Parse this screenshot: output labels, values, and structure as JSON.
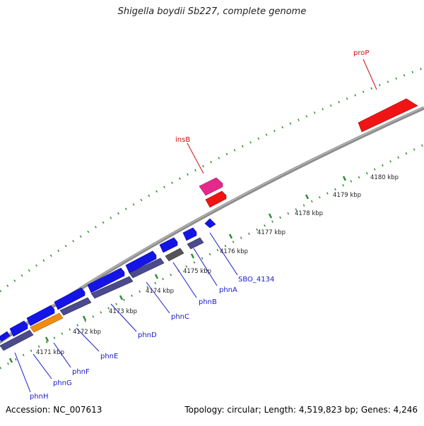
{
  "title": "Shigella boydii Sb227, complete genome",
  "footer": {
    "accession": "Accession: NC_007613",
    "summary": "Topology: circular; Length: 4,519,823 bp; Genes: 4,246"
  },
  "colors": {
    "backbone": "#8c8c8c",
    "tick": "#2e8b2e",
    "blue_gene": "#1414e6",
    "slate_gene": "#4a4a8c",
    "orange_gene": "#f08c14",
    "red_gene": "#f01414",
    "pink_gene": "#e6288c",
    "gray_gene": "#555555",
    "blue_label": "#1a1acc",
    "red_label": "#cc1111",
    "kbp_label": "#222222"
  },
  "scale_labels": [
    "4171 kbp",
    "4172 kbp",
    "4173 kbp",
    "4174 kbp",
    "4175 kbp",
    "4176 kbp",
    "4177 kbp",
    "4178 kbp",
    "4179 kbp",
    "4180 kbp"
  ],
  "gene_labels_lower": [
    "phnH",
    "phnG",
    "phnF",
    "phnE",
    "phnD",
    "phnC",
    "phnB",
    "phnA",
    "SBO_4134"
  ],
  "gene_labels_upper": [
    "insB",
    "proP"
  ]
}
